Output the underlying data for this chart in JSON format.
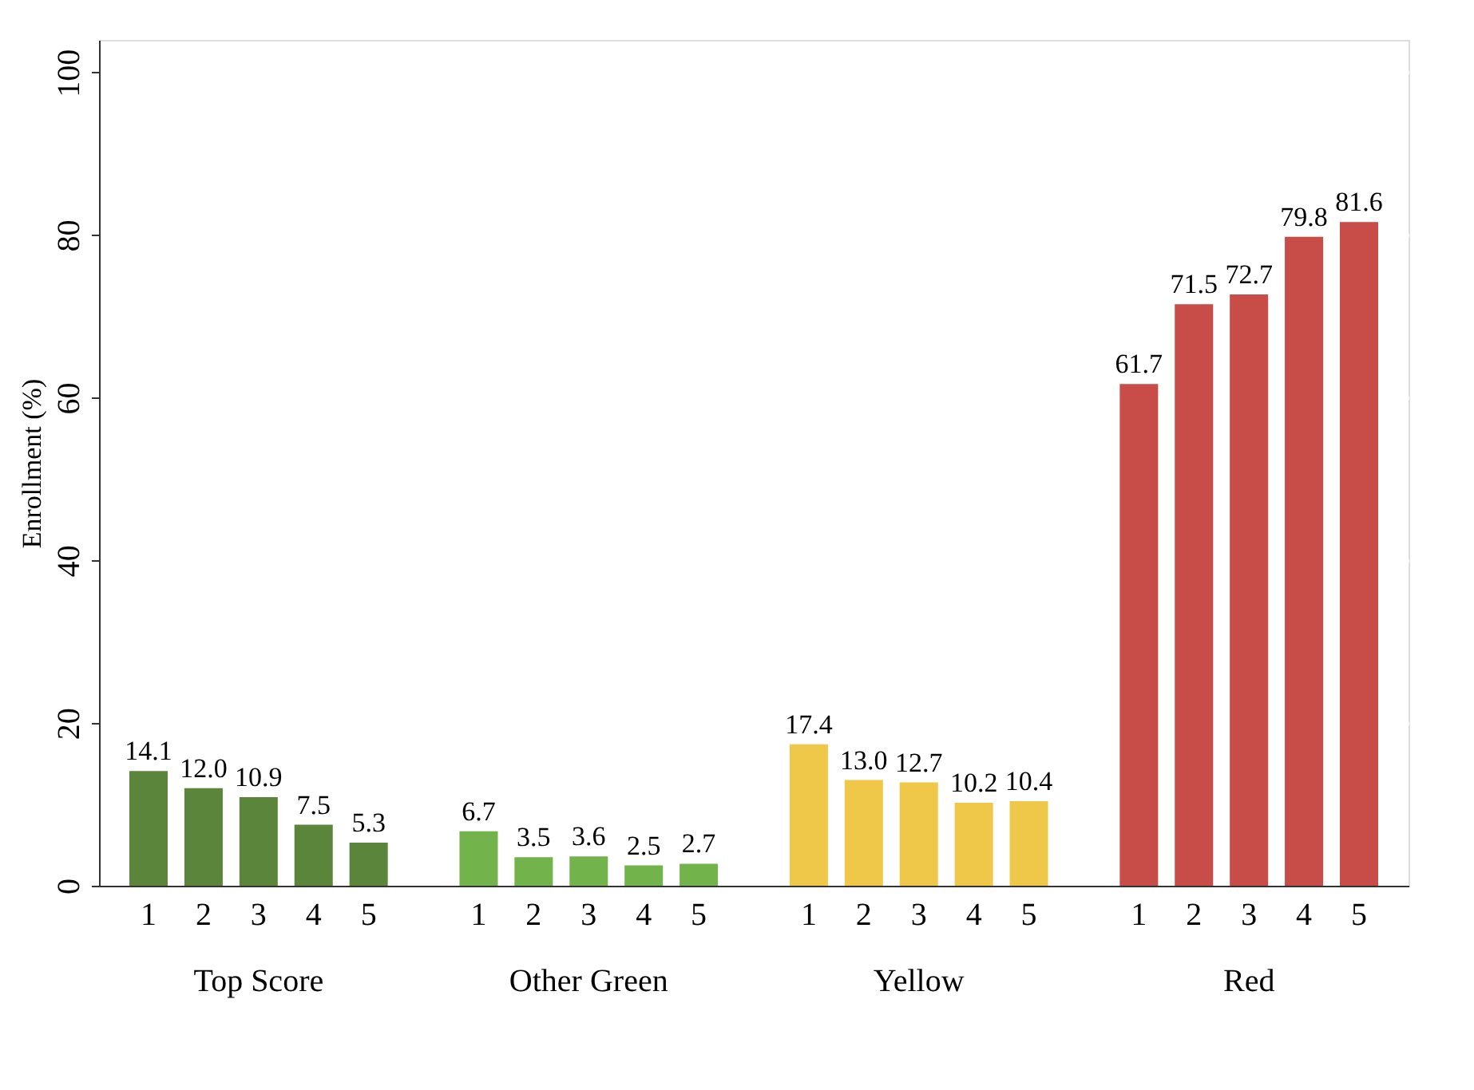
{
  "chart_data": {
    "type": "bar",
    "ylabel": "Enrollment (%)",
    "categories": [
      "1",
      "2",
      "3",
      "4",
      "5",
      "1",
      "2",
      "3",
      "4",
      "5",
      "1",
      "2",
      "3",
      "4",
      "5",
      "1",
      "2",
      "3",
      "4",
      "5"
    ],
    "series": [
      {
        "name": "Top Score",
        "color": "#5a853b",
        "values": [
          14.1,
          12.0,
          10.9,
          7.5,
          5.3,
          null,
          null,
          null,
          null,
          null,
          null,
          null,
          null,
          null,
          null,
          null,
          null,
          null,
          null,
          null
        ],
        "value_labels": [
          "14.1",
          "12.0",
          "10.9",
          "7.5",
          "5.3",
          null,
          null,
          null,
          null,
          null,
          null,
          null,
          null,
          null,
          null,
          null,
          null,
          null,
          null,
          null
        ]
      },
      {
        "name": "Other Green",
        "color": "#72b34c",
        "values": [
          null,
          null,
          null,
          null,
          null,
          6.7,
          3.5,
          3.6,
          2.5,
          2.7,
          null,
          null,
          null,
          null,
          null,
          null,
          null,
          null,
          null,
          null
        ],
        "value_labels": [
          null,
          null,
          null,
          null,
          null,
          "6.7",
          "3.5",
          "3.6",
          "2.5",
          "2.7",
          null,
          null,
          null,
          null,
          null,
          null,
          null,
          null,
          null,
          null
        ]
      },
      {
        "name": "Yellow",
        "color": "#efc84a",
        "values": [
          null,
          null,
          null,
          null,
          null,
          null,
          null,
          null,
          null,
          null,
          17.4,
          13.0,
          12.7,
          10.2,
          10.4,
          null,
          null,
          null,
          null,
          null
        ],
        "value_labels": [
          null,
          null,
          null,
          null,
          null,
          null,
          null,
          null,
          null,
          null,
          "17.4",
          "13.0",
          "12.7",
          "10.2",
          "10.4",
          null,
          null,
          null,
          null,
          null
        ]
      },
      {
        "name": "Red",
        "color": "#c84c48",
        "values": [
          null,
          null,
          null,
          null,
          null,
          null,
          null,
          null,
          null,
          null,
          null,
          null,
          null,
          null,
          null,
          61.7,
          71.5,
          72.7,
          79.8,
          81.6
        ],
        "value_labels": [
          null,
          null,
          null,
          null,
          null,
          null,
          null,
          null,
          null,
          null,
          null,
          null,
          null,
          null,
          null,
          "61.7",
          "71.5",
          "72.7",
          "79.8",
          "81.6"
        ]
      }
    ],
    "ylim": [
      0,
      104
    ],
    "yticks": [
      0,
      20,
      40,
      60,
      80,
      100
    ],
    "grid": "y"
  }
}
